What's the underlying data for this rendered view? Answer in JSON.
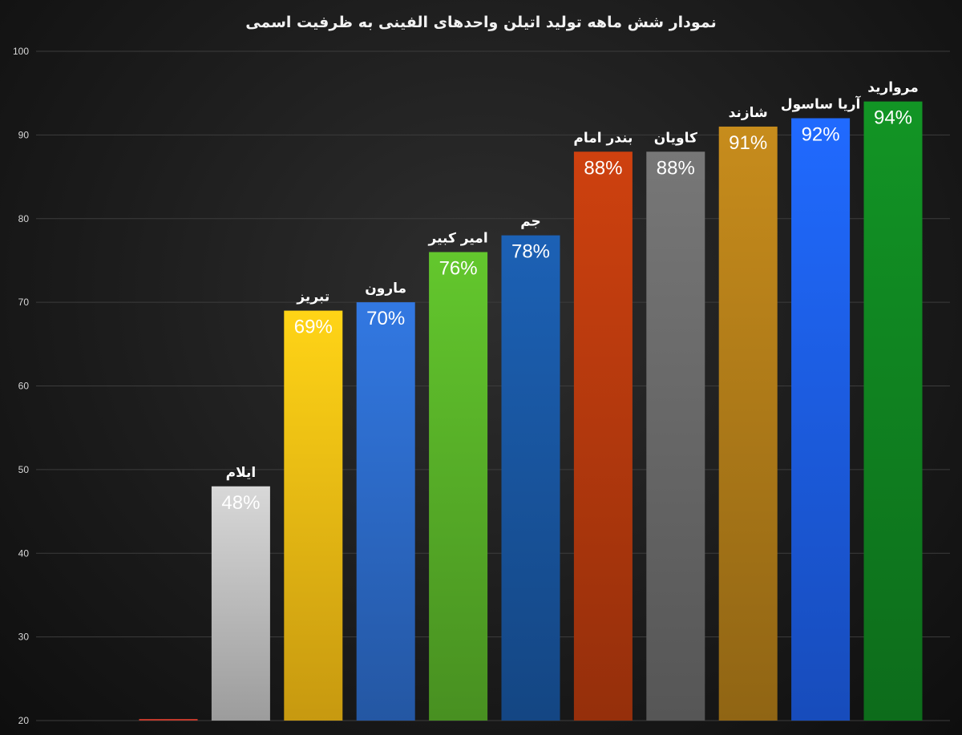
{
  "chart_data": {
    "type": "bar",
    "title": "نمودار شش ماهه تولید اتیلن واحدهای الفینی به ظرفیت اسمی",
    "xlabel": "",
    "ylabel": "",
    "ylim": [
      20,
      100
    ],
    "yticks": [
      100,
      90,
      80,
      70,
      60,
      50,
      40,
      30,
      20
    ],
    "grid": true,
    "categories": [
      "",
      "ایلام",
      "تبریز",
      "مارون",
      "امیر کبیر",
      "جم",
      "بندر امام",
      "کاویان",
      "شازند",
      "آریا ساسول",
      "مروارید"
    ],
    "values": [
      20,
      48,
      69,
      70,
      76,
      78,
      88,
      88,
      91,
      92,
      94
    ],
    "data_labels": [
      "",
      "48%",
      "69%",
      "70%",
      "76%",
      "78%",
      "88%",
      "88%",
      "91%",
      "92%",
      "94%"
    ],
    "colors": [
      "#c0392b",
      "#c8c8c8",
      "#ffc414",
      "#2e6fd1",
      "#5cb82a",
      "#1a5aa8",
      "#bf3c0e",
      "#6e6e6e",
      "#b8821a",
      "#1e62f0",
      "#118a22"
    ],
    "label_colors": [
      "#ffffff",
      "#ffffff",
      "#ffffff",
      "#ffffff",
      "#ffffff",
      "#ffffff",
      "#ffffff",
      "#ffffff",
      "#ffffff",
      "#ffffff",
      "#ffffff"
    ]
  }
}
